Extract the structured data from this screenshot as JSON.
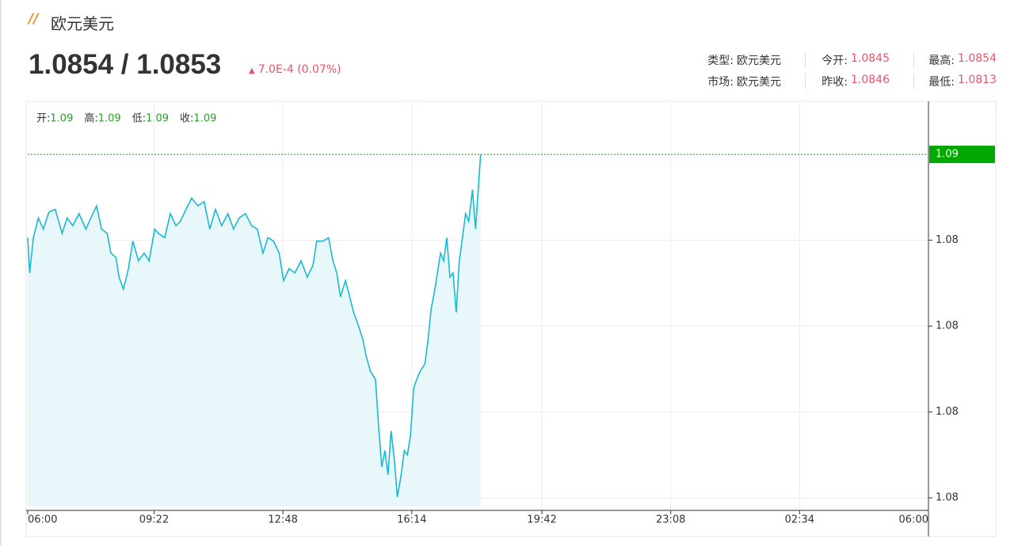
{
  "header": {
    "title": "欧元美元",
    "price": "1.0854 / 1.0853",
    "change": "7.0E-4 (0.07%)",
    "stats": [
      [
        {
          "label": "类型:",
          "value": "欧元美元"
        },
        {
          "label": "今开:",
          "value": "1.0845"
        },
        {
          "label": "最高:",
          "value": "1.0854"
        }
      ],
      [
        {
          "label": "市场:",
          "value": "欧元美元"
        },
        {
          "label": "昨收:",
          "value": "1.0846"
        },
        {
          "label": "最低:",
          "value": "1.0813"
        }
      ]
    ]
  },
  "ohlc": [
    {
      "label": "开:",
      "value": "1.09"
    },
    {
      "label": "高:",
      "value": "1.09"
    },
    {
      "label": "低:",
      "value": "1.09"
    },
    {
      "label": "收:",
      "value": "1.09"
    }
  ],
  "chart_data": {
    "type": "line",
    "x": [
      0,
      3,
      9,
      17,
      25,
      34,
      44,
      55,
      63,
      72,
      82,
      93,
      101,
      110,
      118,
      127,
      133,
      141,
      146,
      153,
      161,
      168,
      177,
      186,
      194,
      203,
      209,
      219,
      228,
      237,
      244,
      253,
      262,
      272,
      282,
      291,
      300,
      310,
      320,
      329,
      338,
      348,
      358,
      367,
      376,
      384,
      393,
      402,
      409,
      418,
      427,
      437,
      447,
      456,
      462,
      472,
      481,
      488,
      494,
      500,
      508,
      513,
      521,
      528,
      536,
      541,
      548,
      556,
      561,
      566,
      571,
      576,
      581,
      586,
      591,
      597,
      602,
      607,
      612,
      617,
      622,
      627,
      635,
      640,
      645,
      650,
      655,
      660,
      665,
      670,
      675,
      680,
      685,
      690,
      695,
      700,
      705,
      711,
      716,
      721,
      724
    ],
    "series": [
      {
        "color": "#1ab8d2",
        "fill": "#e8f8fa",
        "values": [
          1.08433,
          1.08392,
          1.08433,
          1.08456,
          1.08443,
          1.08463,
          1.08466,
          1.08438,
          1.08456,
          1.08447,
          1.08461,
          1.08443,
          1.08456,
          1.0847,
          1.08443,
          1.08438,
          1.08415,
          1.0841,
          1.08387,
          1.08373,
          1.08397,
          1.08429,
          1.08406,
          1.08415,
          1.08406,
          1.08443,
          1.08438,
          1.08433,
          1.08461,
          1.08447,
          1.08452,
          1.08466,
          1.08479,
          1.0847,
          1.08475,
          1.08443,
          1.08466,
          1.08447,
          1.08461,
          1.08443,
          1.08456,
          1.08461,
          1.08447,
          1.08443,
          1.08415,
          1.08433,
          1.08429,
          1.08415,
          1.08383,
          1.08397,
          1.08392,
          1.08406,
          1.08387,
          1.08401,
          1.08429,
          1.08429,
          1.08433,
          1.08406,
          1.08392,
          1.08364,
          1.08383,
          1.08369,
          1.08346,
          1.08332,
          1.08314,
          1.08295,
          1.08277,
          1.08268,
          1.08212,
          1.08166,
          1.08185,
          1.08157,
          1.08208,
          1.08175,
          1.08131,
          1.08157,
          1.08185,
          1.0818,
          1.08203,
          1.08258,
          1.08268,
          1.08277,
          1.08286,
          1.08314,
          1.0835,
          1.08369,
          1.08392,
          1.08415,
          1.08406,
          1.08433,
          1.08387,
          1.08392,
          1.08346,
          1.08406,
          1.08433,
          1.08461,
          1.08452,
          1.08489,
          1.08443,
          1.08498,
          1.0853
        ]
      }
    ],
    "xlim": [
      0,
      1440
    ],
    "xticks": [
      {
        "value": 0,
        "label": "06:00"
      },
      {
        "value": 202,
        "label": "09:22"
      },
      {
        "value": 408,
        "label": "12:48"
      },
      {
        "value": 614,
        "label": "16:14"
      },
      {
        "value": 822,
        "label": "19:42"
      },
      {
        "value": 1028,
        "label": "23:08"
      },
      {
        "value": 1234,
        "label": "02:34"
      },
      {
        "value": 1440,
        "label": "06:00"
      }
    ],
    "ylim": [
      1.0812,
      1.0859
    ],
    "yticks": [
      {
        "value": 1.0813,
        "label": "1.08"
      },
      {
        "value": 1.0823,
        "label": "1.08"
      },
      {
        "value": 1.0833,
        "label": "1.08"
      },
      {
        "value": 1.0843,
        "label": "1.08"
      }
    ],
    "last_price": {
      "value": 1.0853,
      "label": "1.09",
      "color": "#00a800"
    },
    "grid": true
  }
}
